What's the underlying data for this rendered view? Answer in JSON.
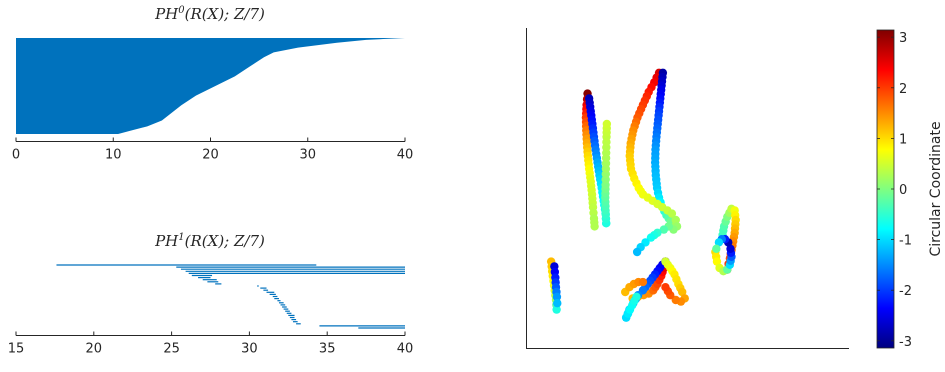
{
  "chart_data": [
    {
      "type": "barcode",
      "title": {
        "base": "PH",
        "sup": "0",
        "rest": "(R(X); Z/7)"
      },
      "xlim": [
        0,
        40
      ],
      "xticks": [
        0,
        10,
        20,
        30,
        40
      ],
      "xtick_labels": [
        "0",
        "10",
        "20",
        "30",
        "40"
      ],
      "color": "#0072bd",
      "profile": [
        [
          0,
          40
        ],
        [
          0.02,
          36
        ],
        [
          0.05,
          33
        ],
        [
          0.1,
          29
        ],
        [
          0.15,
          26.5
        ],
        [
          0.2,
          25.5
        ],
        [
          0.3,
          24
        ],
        [
          0.4,
          22.5
        ],
        [
          0.5,
          20.5
        ],
        [
          0.6,
          18.5
        ],
        [
          0.7,
          17
        ],
        [
          0.78,
          16
        ],
        [
          0.86,
          15
        ],
        [
          0.92,
          13.5
        ],
        [
          0.96,
          12
        ],
        [
          1,
          10.5
        ]
      ]
    },
    {
      "type": "barcode",
      "title": {
        "base": "PH",
        "sup": "1",
        "rest": "(R(X); Z/7)"
      },
      "xlim": [
        15,
        40
      ],
      "xticks": [
        15,
        20,
        25,
        30,
        35,
        40
      ],
      "xtick_labels": [
        "15",
        "20",
        "25",
        "30",
        "35",
        "40"
      ],
      "color": "#0072bd",
      "bars": [
        [
          17.6,
          34.3
        ],
        [
          25.3,
          40
        ],
        [
          25.6,
          40
        ],
        [
          25.9,
          40
        ],
        [
          26.1,
          40
        ],
        [
          26.3,
          27.6
        ],
        [
          26.7,
          27.5
        ],
        [
          27,
          27.9
        ],
        [
          27.3,
          28
        ],
        [
          27.8,
          28.2
        ],
        [
          30.5,
          30.6
        ],
        [
          30.7,
          31.1
        ],
        [
          30.9,
          31.2
        ],
        [
          31.1,
          31.6
        ],
        [
          31.3,
          31.7
        ],
        [
          31.5,
          31.8
        ],
        [
          31.6,
          31.9
        ],
        [
          31.8,
          32
        ],
        [
          31.9,
          32.2
        ],
        [
          32,
          32.3
        ],
        [
          32.1,
          32.4
        ],
        [
          32.2,
          32.5
        ],
        [
          32.3,
          32.6
        ],
        [
          32.4,
          32.7
        ],
        [
          32.5,
          32.9
        ],
        [
          32.6,
          32.9
        ],
        [
          32.7,
          33
        ],
        [
          32.8,
          33.1
        ],
        [
          33,
          33.3
        ],
        [
          34.5,
          40
        ],
        [
          37,
          40
        ]
      ]
    },
    {
      "type": "scatter",
      "colorbar": {
        "label": "Circular Coordinate",
        "range": [
          -3.14159,
          3.14159
        ],
        "ticks": [
          3,
          2,
          1,
          0,
          -1,
          -2,
          -3
        ],
        "colormap": "jet"
      },
      "marker_size": 4.2,
      "series": [
        {
          "path": [
            [
              0.188,
              0.795
            ],
            [
              0.185,
              0.76
            ],
            [
              0.183,
              0.72
            ],
            [
              0.184,
              0.68
            ],
            [
              0.186,
              0.64
            ],
            [
              0.189,
              0.6
            ],
            [
              0.193,
              0.56
            ],
            [
              0.198,
              0.52
            ],
            [
              0.202,
              0.48
            ],
            [
              0.205,
              0.44
            ],
            [
              0.208,
              0.405
            ],
            [
              0.21,
              0.38
            ]
          ],
          "c": [
            3.1,
            2.5,
            2.0,
            1.6,
            1.3,
            1.0,
            0.8,
            0.6,
            0.5,
            0.4,
            0.3,
            0.3
          ]
        },
        {
          "path": [
            [
              0.193,
              0.78
            ],
            [
              0.198,
              0.74
            ],
            [
              0.203,
              0.7
            ],
            [
              0.208,
              0.66
            ],
            [
              0.213,
              0.62
            ],
            [
              0.219,
              0.58
            ],
            [
              0.225,
              0.54
            ],
            [
              0.232,
              0.5
            ],
            [
              0.238,
              0.46
            ],
            [
              0.244,
              0.42
            ],
            [
              0.246,
              0.39
            ]
          ],
          "c": [
            -2.8,
            -2.5,
            -2.2,
            -1.9,
            -1.6,
            -1.3,
            -1.1,
            -0.9,
            -0.8,
            -0.7,
            -0.6
          ]
        },
        {
          "path": [
            [
              0.246,
              0.39
            ],
            [
              0.244,
              0.43
            ],
            [
              0.243,
              0.47
            ],
            [
              0.244,
              0.51
            ],
            [
              0.245,
              0.56
            ],
            [
              0.246,
              0.61
            ],
            [
              0.247,
              0.66
            ],
            [
              0.248,
              0.7
            ]
          ],
          "c": [
            -0.6,
            -0.4,
            -0.2,
            0.0,
            0.2,
            0.3,
            0.4,
            0.5
          ]
        },
        {
          "path": [
            [
              0.41,
              0.86
            ],
            [
              0.395,
              0.83
            ],
            [
              0.378,
              0.8
            ],
            [
              0.36,
              0.76
            ],
            [
              0.343,
              0.72
            ],
            [
              0.33,
              0.68
            ],
            [
              0.322,
              0.64
            ],
            [
              0.319,
              0.6
            ],
            [
              0.323,
              0.56
            ],
            [
              0.333,
              0.53
            ],
            [
              0.347,
              0.5
            ],
            [
              0.36,
              0.48
            ]
          ],
          "c": [
            2.6,
            2.4,
            2.2,
            2.0,
            1.8,
            1.5,
            1.3,
            1.1,
            1.0,
            0.9,
            0.8,
            0.7
          ]
        },
        {
          "path": [
            [
              0.422,
              0.86
            ],
            [
              0.418,
              0.82
            ],
            [
              0.414,
              0.78
            ],
            [
              0.41,
              0.74
            ],
            [
              0.406,
              0.7
            ],
            [
              0.402,
              0.66
            ],
            [
              0.399,
              0.62
            ],
            [
              0.398,
              0.58
            ],
            [
              0.4,
              0.54
            ],
            [
              0.404,
              0.5
            ],
            [
              0.41,
              0.47
            ],
            [
              0.42,
              0.44
            ],
            [
              0.433,
              0.415
            ],
            [
              0.447,
              0.395
            ],
            [
              0.458,
              0.38
            ]
          ],
          "c": [
            -2.9,
            -2.6,
            -2.3,
            -2.0,
            -1.8,
            -1.6,
            -1.4,
            -1.3,
            -1.2,
            -1.1,
            -0.9,
            -0.7,
            -0.4,
            -0.1,
            0.2
          ]
        },
        {
          "path": [
            [
              0.36,
              0.48
            ],
            [
              0.375,
              0.47
            ],
            [
              0.39,
              0.46
            ],
            [
              0.405,
              0.45
            ],
            [
              0.42,
              0.44
            ],
            [
              0.436,
              0.43
            ],
            [
              0.45,
              0.42
            ],
            [
              0.462,
              0.4
            ],
            [
              0.466,
              0.38
            ],
            [
              0.455,
              0.37
            ],
            [
              0.44,
              0.38
            ]
          ],
          "c": [
            0.7,
            0.65,
            0.6,
            0.55,
            0.5,
            0.45,
            0.35,
            0.25,
            0.15,
            0.05,
            -0.1
          ]
        },
        {
          "path": [
            [
              0.44,
              0.38
            ],
            [
              0.425,
              0.37
            ],
            [
              0.405,
              0.36
            ],
            [
              0.385,
              0.345
            ],
            [
              0.368,
              0.33
            ],
            [
              0.353,
              0.315
            ],
            [
              0.342,
              0.3
            ]
          ],
          "c": [
            -0.1,
            -0.3,
            -0.5,
            -0.7,
            -0.9,
            -1.05,
            -1.2
          ]
        },
        {
          "path": [
            [
              0.075,
              0.27
            ],
            [
              0.078,
              0.24
            ],
            [
              0.082,
              0.21
            ],
            [
              0.086,
              0.18
            ],
            [
              0.09,
              0.15
            ],
            [
              0.092,
              0.12
            ]
          ],
          "c": [
            1.2,
            1.0,
            0.8,
            0.6,
            0.2,
            -0.6
          ]
        },
        {
          "path": [
            [
              0.085,
              0.255
            ],
            [
              0.088,
              0.22
            ],
            [
              0.09,
              0.19
            ],
            [
              0.093,
              0.16
            ],
            [
              0.094,
              0.14
            ]
          ],
          "c": [
            -2.6,
            -2.2,
            -1.8,
            -1.4,
            -1.2
          ]
        },
        {
          "path": [
            [
              0.328,
              0.155
            ],
            [
              0.345,
              0.16
            ],
            [
              0.362,
              0.165
            ],
            [
              0.378,
              0.17
            ],
            [
              0.392,
              0.18
            ],
            [
              0.405,
              0.2
            ],
            [
              0.417,
              0.225
            ],
            [
              0.425,
              0.25
            ],
            [
              0.43,
              0.27
            ]
          ],
          "c": [
            1.2,
            1.3,
            1.4,
            1.5,
            1.7,
            1.9,
            2.2,
            2.5,
            3.0
          ]
        },
        {
          "path": [
            [
              0.43,
              0.27
            ],
            [
              0.42,
              0.26
            ],
            [
              0.405,
              0.24
            ],
            [
              0.39,
              0.22
            ],
            [
              0.375,
              0.2
            ],
            [
              0.36,
              0.18
            ],
            [
              0.345,
              0.165
            ],
            [
              0.33,
              0.14
            ],
            [
              0.318,
              0.12
            ],
            [
              0.308,
              0.095
            ]
          ],
          "c": [
            -2.8,
            -2.5,
            -2.3,
            -2.0,
            -1.8,
            -1.6,
            -1.5,
            -1.3,
            -1.1,
            -1.0
          ]
        },
        {
          "path": [
            [
              0.308,
              0.095
            ],
            [
              0.32,
              0.12
            ],
            [
              0.34,
              0.16
            ]
          ],
          "c": [
            -1.0,
            -0.8,
            -0.6
          ]
        },
        {
          "path": [
            [
              0.43,
              0.27
            ],
            [
              0.445,
              0.25
            ],
            [
              0.458,
              0.23
            ],
            [
              0.47,
              0.2
            ],
            [
              0.482,
              0.175
            ],
            [
              0.49,
              0.155
            ],
            [
              0.478,
              0.145
            ],
            [
              0.462,
              0.15
            ],
            [
              0.445,
              0.165
            ],
            [
              0.43,
              0.19
            ]
          ],
          "c": [
            0.5,
            0.7,
            0.9,
            1.0,
            1.2,
            1.35,
            1.5,
            1.6,
            1.8,
            2.0
          ]
        },
        {
          "path": [
            [
              0.305,
              0.175
            ],
            [
              0.318,
              0.19
            ],
            [
              0.332,
              0.2
            ],
            [
              0.346,
              0.206
            ],
            [
              0.36,
              0.206
            ]
          ],
          "c": [
            1.2,
            1.3,
            1.4,
            1.5,
            1.6
          ]
        },
        {
          "path": [
            [
              0.605,
              0.34
            ],
            [
              0.612,
              0.38
            ],
            [
              0.622,
              0.41
            ],
            [
              0.635,
              0.435
            ],
            [
              0.645,
              0.43
            ],
            [
              0.648,
              0.4
            ],
            [
              0.645,
              0.36
            ],
            [
              0.638,
              0.32
            ],
            [
              0.63,
              0.28
            ],
            [
              0.622,
              0.245
            ]
          ],
          "c": [
            -0.5,
            -0.3,
            0.0,
            0.4,
            0.7,
            1.0,
            1.3,
            1.6,
            1.9,
            2.1
          ]
        },
        {
          "path": [
            [
              0.585,
              0.3
            ],
            [
              0.59,
              0.27
            ],
            [
              0.598,
              0.25
            ],
            [
              0.61,
              0.24
            ],
            [
              0.622,
              0.245
            ],
            [
              0.63,
              0.26
            ],
            [
              0.635,
              0.285
            ],
            [
              0.632,
              0.31
            ],
            [
              0.625,
              0.33
            ],
            [
              0.615,
              0.34
            ],
            [
              0.605,
              0.34
            ],
            [
              0.596,
              0.33
            ],
            [
              0.588,
              0.31
            ]
          ],
          "c": [
            1.0,
            0.8,
            0.6,
            0.3,
            -0.2,
            -1.0,
            -1.8,
            -2.6,
            -2.8,
            -2.2,
            -1.6,
            -1.0,
            -0.2
          ]
        }
      ]
    }
  ]
}
